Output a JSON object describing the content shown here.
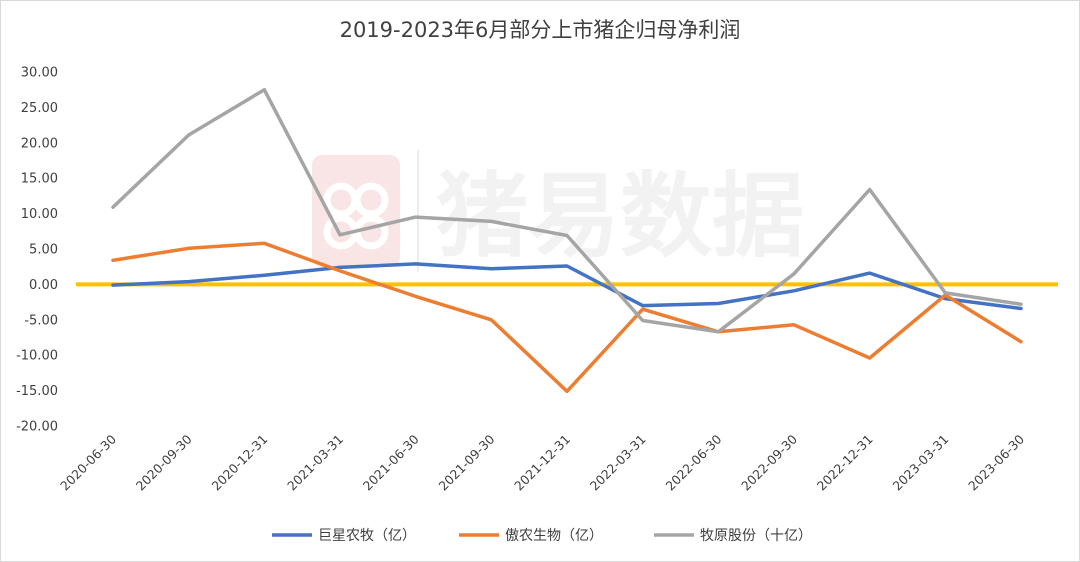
{
  "chart_data": {
    "type": "line",
    "title": "2019-2023年6月部分上市猪企归母净利润",
    "categories": [
      "2020-06-30",
      "2020-09-30",
      "2020-12-31",
      "2021-03-31",
      "2021-06-30",
      "2021-09-30",
      "2021-12-31",
      "2022-03-31",
      "2022-06-30",
      "2022-09-30",
      "2022-12-31",
      "2023-03-31",
      "2023-06-30"
    ],
    "series": [
      {
        "name": "巨星农牧（亿）",
        "color": "#4472c4",
        "values": [
          -0.1,
          0.4,
          1.3,
          2.4,
          2.9,
          2.2,
          2.6,
          -3.0,
          -2.7,
          -0.9,
          1.6,
          -2.0,
          -3.4
        ]
      },
      {
        "name": "傲农生物（亿）",
        "color": "#ed7d31",
        "values": [
          3.4,
          5.1,
          5.8,
          1.9,
          -1.7,
          -5.0,
          -15.1,
          -3.5,
          -6.7,
          -5.7,
          -10.4,
          -1.5,
          -8.1
        ]
      },
      {
        "name": "牧原股份（十亿）",
        "color": "#a5a5a5",
        "values": [
          10.9,
          21.1,
          27.5,
          7.0,
          9.5,
          8.9,
          6.9,
          -5.1,
          -6.7,
          1.5,
          13.4,
          -1.2,
          -2.8
        ]
      }
    ],
    "yticks": [
      "30.00",
      "25.00",
      "20.00",
      "15.00",
      "10.00",
      "5.00",
      "0.00",
      "-5.00",
      "-10.00",
      "-15.00",
      "-20.00"
    ],
    "ylim": [
      -20,
      30
    ],
    "zero_line_color": "#ffc000",
    "grid": false,
    "legend_position": "bottom"
  },
  "watermark": {
    "text": "猪易数据",
    "logo": "pig-logo-icon",
    "color": "#f2c4c4"
  }
}
